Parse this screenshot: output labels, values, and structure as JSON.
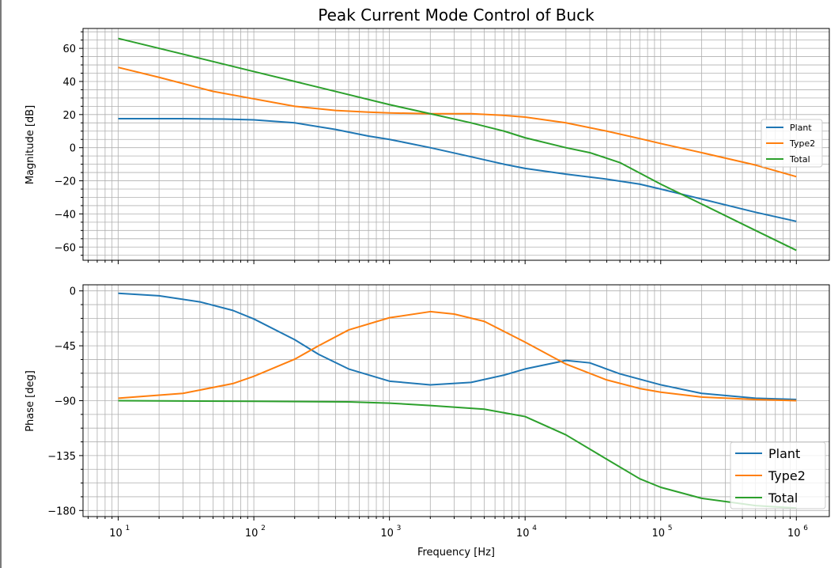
{
  "chart_data": {
    "title": "Peak Current Mode Control of Buck",
    "type": "line",
    "xlabel": "Frequency [Hz]",
    "x_scale": "log",
    "x_tick_labels": [
      {
        "base": "10",
        "exp": "1",
        "value": 10
      },
      {
        "base": "10",
        "exp": "2",
        "value": 100
      },
      {
        "base": "10",
        "exp": "3",
        "value": 1000
      },
      {
        "base": "10",
        "exp": "4",
        "value": 10000
      },
      {
        "base": "10",
        "exp": "5",
        "value": 100000
      },
      {
        "base": "10",
        "exp": "6",
        "value": 1000000
      }
    ],
    "grid": true,
    "colors": {
      "Plant": "#1f77b4",
      "Type2": "#ff7f0e",
      "Total": "#2ca02c"
    },
    "subplots": [
      {
        "ylabel": "Magnitude [dB]",
        "ylim": [
          -68,
          72
        ],
        "yticks": [
          60,
          40,
          20,
          0,
          -20,
          -40,
          -60
        ],
        "ytick_labels": [
          "60",
          "40",
          "20",
          "0",
          "−20",
          "−40",
          "−60"
        ],
        "legend": {
          "placement": "center-right",
          "entries": [
            "Plant",
            "Type2",
            "Total"
          ]
        },
        "series": [
          {
            "name": "Plant",
            "points": [
              [
                10,
                17.5
              ],
              [
                30,
                17.5
              ],
              [
                60,
                17.3
              ],
              [
                100,
                16.8
              ],
              [
                200,
                15
              ],
              [
                400,
                11
              ],
              [
                700,
                7
              ],
              [
                1000,
                5
              ],
              [
                2000,
                0
              ],
              [
                4000,
                -5.5
              ],
              [
                7000,
                -10
              ],
              [
                10000,
                -12.5
              ],
              [
                20000,
                -16
              ],
              [
                40000,
                -19
              ],
              [
                70000,
                -22
              ],
              [
                100000,
                -25
              ],
              [
                200000,
                -31
              ],
              [
                500000,
                -39
              ],
              [
                1000000,
                -44.5
              ]
            ]
          },
          {
            "name": "Type2",
            "points": [
              [
                10,
                48.5
              ],
              [
                20,
                42.5
              ],
              [
                50,
                34
              ],
              [
                100,
                29.5
              ],
              [
                200,
                25
              ],
              [
                400,
                22.5
              ],
              [
                700,
                21.5
              ],
              [
                1000,
                21
              ],
              [
                2000,
                20.5
              ],
              [
                4000,
                20.5
              ],
              [
                7000,
                19.5
              ],
              [
                10000,
                18.5
              ],
              [
                20000,
                15
              ],
              [
                40000,
                10
              ],
              [
                70000,
                5.5
              ],
              [
                100000,
                2.5
              ],
              [
                200000,
                -3
              ],
              [
                500000,
                -10.5
              ],
              [
                1000000,
                -17.5
              ]
            ]
          },
          {
            "name": "Total",
            "points": [
              [
                10,
                66
              ],
              [
                30,
                56.5
              ],
              [
                100,
                46
              ],
              [
                300,
                36.5
              ],
              [
                1000,
                26
              ],
              [
                2000,
                20.5
              ],
              [
                4000,
                15
              ],
              [
                7000,
                10
              ],
              [
                10000,
                6
              ],
              [
                20000,
                0
              ],
              [
                30000,
                -3
              ],
              [
                50000,
                -9
              ],
              [
                100000,
                -22
              ],
              [
                200000,
                -34
              ],
              [
                500000,
                -50
              ],
              [
                1000000,
                -62
              ]
            ]
          }
        ]
      },
      {
        "ylabel": "Phase [deg]",
        "ylim": [
          -185,
          5
        ],
        "yticks": [
          0,
          -45,
          -90,
          -135,
          -180
        ],
        "ytick_labels": [
          "0",
          "−45",
          "−90",
          "−135",
          "−180"
        ],
        "legend": {
          "placement": "lower-right",
          "entries": [
            "Plant",
            "Type2",
            "Total"
          ]
        },
        "series": [
          {
            "name": "Plant",
            "points": [
              [
                10,
                -2
              ],
              [
                20,
                -4
              ],
              [
                40,
                -9
              ],
              [
                70,
                -16
              ],
              [
                100,
                -23
              ],
              [
                200,
                -40
              ],
              [
                300,
                -52
              ],
              [
                500,
                -64
              ],
              [
                1000,
                -74
              ],
              [
                2000,
                -77
              ],
              [
                4000,
                -75
              ],
              [
                7000,
                -69
              ],
              [
                10000,
                -64
              ],
              [
                20000,
                -57
              ],
              [
                30000,
                -59
              ],
              [
                50000,
                -68
              ],
              [
                100000,
                -77
              ],
              [
                200000,
                -84
              ],
              [
                500000,
                -88
              ],
              [
                1000000,
                -89
              ]
            ]
          },
          {
            "name": "Type2",
            "points": [
              [
                10,
                -88
              ],
              [
                30,
                -84
              ],
              [
                70,
                -76
              ],
              [
                100,
                -70
              ],
              [
                200,
                -56
              ],
              [
                300,
                -45
              ],
              [
                500,
                -32
              ],
              [
                1000,
                -22
              ],
              [
                2000,
                -17
              ],
              [
                3000,
                -19
              ],
              [
                5000,
                -25
              ],
              [
                10000,
                -42
              ],
              [
                20000,
                -60
              ],
              [
                40000,
                -73
              ],
              [
                70000,
                -80
              ],
              [
                100000,
                -83
              ],
              [
                200000,
                -87
              ],
              [
                500000,
                -89
              ],
              [
                1000000,
                -90
              ]
            ]
          },
          {
            "name": "Total",
            "points": [
              [
                10,
                -90
              ],
              [
                100,
                -90.5
              ],
              [
                500,
                -91
              ],
              [
                1000,
                -92
              ],
              [
                2000,
                -94
              ],
              [
                5000,
                -97
              ],
              [
                10000,
                -103
              ],
              [
                20000,
                -118
              ],
              [
                40000,
                -138
              ],
              [
                70000,
                -154
              ],
              [
                100000,
                -161
              ],
              [
                200000,
                -170
              ],
              [
                500000,
                -176
              ],
              [
                1000000,
                -178
              ]
            ]
          }
        ]
      }
    ]
  }
}
